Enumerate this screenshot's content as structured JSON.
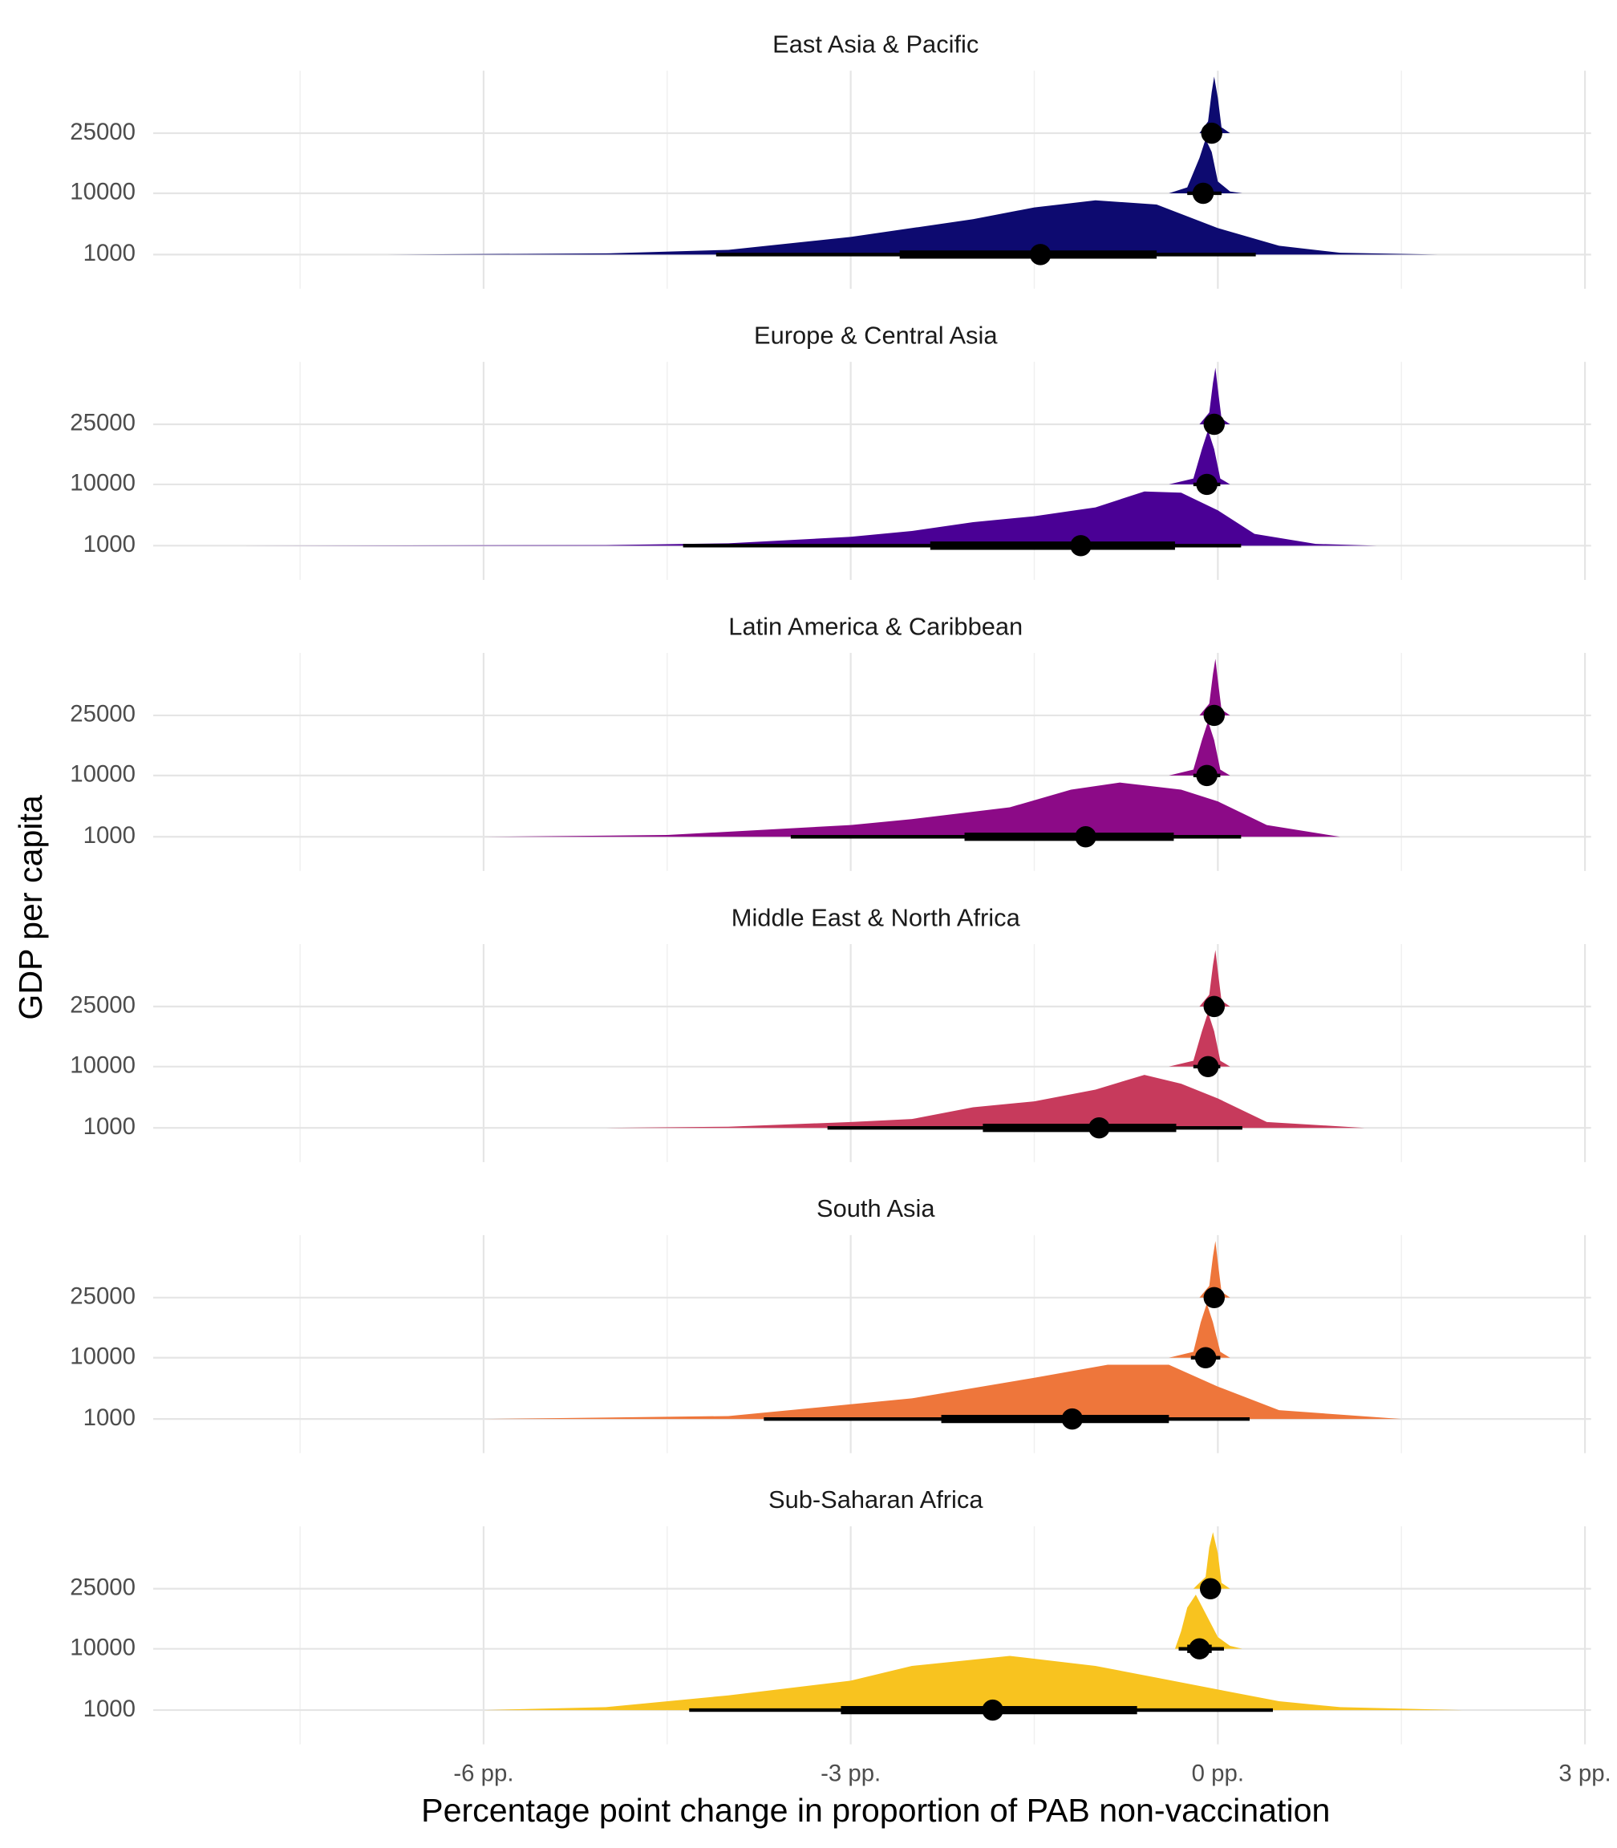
{
  "chart_data": {
    "type": "halfeye",
    "x_label": "Percentage point change in proportion of PAB non-vaccination",
    "y_label": "GDP per capita",
    "xlim": [
      -8.7,
      3.05
    ],
    "xticks": [
      {
        "value": -6,
        "label": "-6 pp."
      },
      {
        "value": -3,
        "label": "-3 pp."
      },
      {
        "value": 0,
        "label": "0 pp."
      },
      {
        "value": 3,
        "label": "3 pp."
      }
    ],
    "x_minor_ticks": [
      -7.5,
      -4.5,
      -1.5,
      1.5
    ],
    "categories": [
      "1000",
      "10000",
      "25000"
    ],
    "grid": true,
    "panels": [
      {
        "title": "East Asia & Pacific",
        "color": "#0d0a70",
        "rows": [
          {
            "density": {
              "x": [
                -6.8,
                -5,
                -4,
                -3,
                -2,
                -1.5,
                -1,
                -0.5,
                0,
                0.5,
                1,
                1.8
              ],
              "y": [
                0,
                0.02,
                0.08,
                0.3,
                0.6,
                0.8,
                0.92,
                0.85,
                0.45,
                0.15,
                0.03,
                0
              ]
            },
            "point": -1.45,
            "interval66": [
              -2.6,
              -0.5
            ],
            "interval95": [
              -4.1,
              0.31
            ]
          },
          {
            "density": {
              "x": [
                -0.4,
                -0.25,
                -0.15,
                -0.1,
                -0.05,
                0,
                0.1,
                0.2
              ],
              "y": [
                0,
                0.1,
                0.6,
                0.92,
                0.7,
                0.2,
                0.03,
                0
              ]
            },
            "point": -0.12,
            "interval66": [
              -0.18,
              -0.05
            ],
            "interval95": [
              -0.25,
              0.03
            ]
          },
          {
            "density": {
              "x": [
                -0.15,
                -0.08,
                -0.05,
                -0.03,
                0,
                0.03,
                0.1
              ],
              "y": [
                0,
                0.2,
                0.7,
                0.96,
                0.6,
                0.1,
                0
              ]
            },
            "point": -0.05,
            "interval66": [
              -0.07,
              -0.03
            ],
            "interval95": [
              -0.1,
              0.0
            ]
          }
        ]
      },
      {
        "title": "Europe & Central Asia",
        "color": "#4a0095",
        "rows": [
          {
            "density": {
              "x": [
                -8,
                -5,
                -4,
                -3,
                -2.5,
                -2,
                -1.5,
                -1,
                -0.6,
                -0.3,
                0,
                0.3,
                0.8,
                1.3
              ],
              "y": [
                0,
                0.01,
                0.04,
                0.15,
                0.25,
                0.4,
                0.5,
                0.65,
                0.92,
                0.9,
                0.6,
                0.2,
                0.03,
                0
              ]
            },
            "point": -1.12,
            "interval66": [
              -2.35,
              -0.35
            ],
            "interval95": [
              -4.37,
              0.19
            ]
          },
          {
            "density": {
              "x": [
                -0.4,
                -0.2,
                -0.13,
                -0.08,
                -0.03,
                0.02,
                0.1
              ],
              "y": [
                0,
                0.1,
                0.6,
                0.92,
                0.6,
                0.1,
                0
              ]
            },
            "point": -0.09,
            "interval66": [
              -0.14,
              -0.04
            ],
            "interval95": [
              -0.2,
              0.02
            ]
          },
          {
            "density": {
              "x": [
                -0.15,
                -0.07,
                -0.04,
                -0.02,
                0,
                0.03,
                0.1
              ],
              "y": [
                0,
                0.2,
                0.7,
                0.96,
                0.6,
                0.1,
                0
              ]
            },
            "point": -0.03,
            "interval66": [
              -0.05,
              -0.01
            ],
            "interval95": [
              -0.08,
              0.01
            ]
          }
        ]
      },
      {
        "title": "Latin America & Caribbean",
        "color": "#8c0a87",
        "rows": [
          {
            "density": {
              "x": [
                -6,
                -4.5,
                -3,
                -2.5,
                -1.7,
                -1.2,
                -0.8,
                -0.3,
                0,
                0.4,
                1
              ],
              "y": [
                0,
                0.03,
                0.2,
                0.3,
                0.5,
                0.8,
                0.92,
                0.8,
                0.6,
                0.2,
                0
              ]
            },
            "point": -1.08,
            "interval66": [
              -2.07,
              -0.36
            ],
            "interval95": [
              -3.49,
              0.19
            ]
          },
          {
            "density": {
              "x": [
                -0.4,
                -0.2,
                -0.13,
                -0.08,
                -0.03,
                0.02,
                0.1
              ],
              "y": [
                0,
                0.1,
                0.6,
                0.92,
                0.6,
                0.1,
                0
              ]
            },
            "point": -0.09,
            "interval66": [
              -0.14,
              -0.04
            ],
            "interval95": [
              -0.2,
              0.02
            ]
          },
          {
            "density": {
              "x": [
                -0.15,
                -0.07,
                -0.04,
                -0.02,
                0,
                0.03,
                0.1
              ],
              "y": [
                0,
                0.2,
                0.7,
                0.96,
                0.6,
                0.1,
                0
              ]
            },
            "point": -0.03,
            "interval66": [
              -0.05,
              -0.01
            ],
            "interval95": [
              -0.08,
              0.01
            ]
          }
        ]
      },
      {
        "title": "Middle East & North Africa",
        "color": "#c73a5c",
        "rows": [
          {
            "density": {
              "x": [
                -5,
                -4,
                -3,
                -2.5,
                -2,
                -1.5,
                -1,
                -0.6,
                -0.3,
                0,
                0.4,
                1.2
              ],
              "y": [
                0,
                0.02,
                0.1,
                0.15,
                0.35,
                0.45,
                0.65,
                0.9,
                0.75,
                0.5,
                0.1,
                0
              ]
            },
            "point": -0.97,
            "interval66": [
              -1.92,
              -0.34
            ],
            "interval95": [
              -3.19,
              0.2
            ]
          },
          {
            "density": {
              "x": [
                -0.4,
                -0.2,
                -0.13,
                -0.08,
                -0.03,
                0.02,
                0.1
              ],
              "y": [
                0,
                0.1,
                0.6,
                0.92,
                0.6,
                0.1,
                0
              ]
            },
            "point": -0.08,
            "interval66": [
              -0.13,
              -0.03
            ],
            "interval95": [
              -0.2,
              0.02
            ]
          },
          {
            "density": {
              "x": [
                -0.15,
                -0.07,
                -0.04,
                -0.02,
                0,
                0.03,
                0.1
              ],
              "y": [
                0,
                0.2,
                0.7,
                0.96,
                0.6,
                0.1,
                0
              ]
            },
            "point": -0.03,
            "interval66": [
              -0.05,
              -0.01
            ],
            "interval95": [
              -0.08,
              0.01
            ]
          }
        ]
      },
      {
        "title": "South Asia",
        "color": "#ee763b",
        "rows": [
          {
            "density": {
              "x": [
                -6,
                -4,
                -3,
                -2.5,
                -1.5,
                -0.9,
                -0.4,
                0,
                0.5,
                1.5
              ],
              "y": [
                0,
                0.05,
                0.25,
                0.35,
                0.7,
                0.92,
                0.92,
                0.55,
                0.15,
                0
              ]
            },
            "point": -1.19,
            "interval66": [
              -2.26,
              -0.4
            ],
            "interval95": [
              -3.71,
              0.26
            ]
          },
          {
            "density": {
              "x": [
                -0.4,
                -0.2,
                -0.14,
                -0.09,
                -0.04,
                0.02,
                0.1
              ],
              "y": [
                0,
                0.1,
                0.6,
                0.92,
                0.6,
                0.1,
                0
              ]
            },
            "point": -0.1,
            "interval66": [
              -0.15,
              -0.05
            ],
            "interval95": [
              -0.22,
              0.02
            ]
          },
          {
            "density": {
              "x": [
                -0.15,
                -0.07,
                -0.04,
                -0.02,
                0,
                0.03,
                0.1
              ],
              "y": [
                0,
                0.2,
                0.7,
                0.96,
                0.6,
                0.1,
                0
              ]
            },
            "point": -0.03,
            "interval66": [
              -0.05,
              -0.01
            ],
            "interval95": [
              -0.08,
              0.01
            ]
          }
        ]
      },
      {
        "title": "Sub-Saharan Africa",
        "color": "#f8c31f",
        "rows": [
          {
            "density": {
              "x": [
                -6,
                -5,
                -4,
                -3,
                -2.5,
                -1.7,
                -1,
                -0.5,
                0,
                0.5,
                1,
                2
              ],
              "y": [
                0,
                0.05,
                0.25,
                0.5,
                0.75,
                0.92,
                0.75,
                0.55,
                0.35,
                0.15,
                0.05,
                0
              ]
            },
            "point": -1.84,
            "interval66": [
              -3.08,
              -0.66
            ],
            "interval95": [
              -4.32,
              0.45
            ]
          },
          {
            "density": {
              "x": [
                -0.35,
                -0.3,
                -0.25,
                -0.18,
                -0.1,
                0,
                0.1,
                0.2
              ],
              "y": [
                0,
                0.3,
                0.7,
                0.92,
                0.6,
                0.2,
                0.05,
                0
              ]
            },
            "point": -0.15,
            "interval66": [
              -0.25,
              -0.05
            ],
            "interval95": [
              -0.32,
              0.05
            ]
          },
          {
            "density": {
              "x": [
                -0.2,
                -0.1,
                -0.07,
                -0.04,
                0,
                0.03,
                0.1
              ],
              "y": [
                0,
                0.2,
                0.7,
                0.96,
                0.6,
                0.1,
                0
              ]
            },
            "point": -0.06,
            "interval66": [
              -0.09,
              -0.03
            ],
            "interval95": [
              -0.12,
              0.0
            ]
          }
        ]
      }
    ]
  }
}
